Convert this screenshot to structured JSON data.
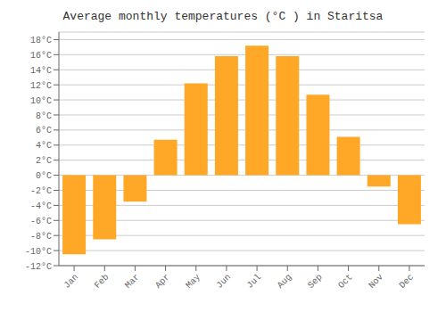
{
  "chart_data": {
    "type": "bar",
    "title": "Average monthly temperatures (°C ) in Staritsa",
    "categories": [
      "Jan",
      "Feb",
      "Mar",
      "Apr",
      "May",
      "Jun",
      "Jul",
      "Aug",
      "Sep",
      "Oct",
      "Nov",
      "Dec"
    ],
    "values": [
      -10.5,
      -8.5,
      -3.5,
      4.7,
      12.2,
      15.8,
      17.2,
      15.8,
      10.7,
      5.1,
      -1.5,
      -6.5
    ],
    "color": "#FFA726",
    "ylim": [
      -12,
      19
    ],
    "yticks": [
      {
        "value": -12,
        "label": "-12°C"
      },
      {
        "value": -10,
        "label": "-10°C"
      },
      {
        "value": -8,
        "label": "-8°C"
      },
      {
        "value": -6,
        "label": "-6°C"
      },
      {
        "value": -4,
        "label": "-4°C"
      },
      {
        "value": -2,
        "label": "-2°C"
      },
      {
        "value": 0,
        "label": "0°C"
      },
      {
        "value": 2,
        "label": "2°C"
      },
      {
        "value": 4,
        "label": "4°C"
      },
      {
        "value": 6,
        "label": "6°C"
      },
      {
        "value": 8,
        "label": "8°C"
      },
      {
        "value": 10,
        "label": "10°C"
      },
      {
        "value": 12,
        "label": "12°C"
      },
      {
        "value": 14,
        "label": "14°C"
      },
      {
        "value": 16,
        "label": "16°C"
      },
      {
        "value": 18,
        "label": "18°C"
      }
    ],
    "grid": true
  }
}
